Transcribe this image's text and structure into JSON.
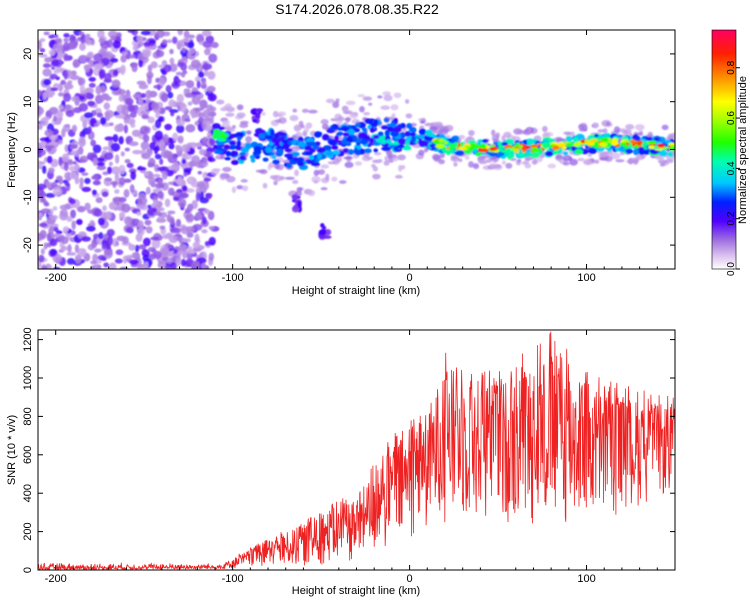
{
  "title": "S174.2026.078.08.35.R22",
  "chart_data": [
    {
      "type": "heatmap",
      "name": "spectrogram",
      "xlabel": "Height of straight line (km)",
      "ylabel": "Frequency (Hz)",
      "xlim": [
        -210,
        150
      ],
      "ylim": [
        -25,
        25
      ],
      "xticks": [
        -200,
        -100,
        0,
        100
      ],
      "yticks": [
        -20,
        -10,
        0,
        10,
        20
      ],
      "colorbar": {
        "label": "Normalized spectral amplitude",
        "range": [
          0,
          0.95
        ],
        "ticks": [
          0.0,
          0.2,
          0.4,
          0.6,
          0.8
        ]
      },
      "features": {
        "noise_region_x": [
          -210,
          -110
        ],
        "signal_trace": [
          {
            "x": -110,
            "y": 3
          },
          {
            "x": -100,
            "y": 0
          },
          {
            "x": -80,
            "y": 1
          },
          {
            "x": -60,
            "y": -1
          },
          {
            "x": -40,
            "y": 2
          },
          {
            "x": -20,
            "y": 3
          },
          {
            "x": 0,
            "y": 3
          },
          {
            "x": 20,
            "y": 1
          },
          {
            "x": 50,
            "y": 0
          },
          {
            "x": 80,
            "y": 0.5
          },
          {
            "x": 110,
            "y": 1.5
          },
          {
            "x": 130,
            "y": 1
          },
          {
            "x": 150,
            "y": 0.5
          }
        ],
        "side_blobs": [
          {
            "x": -63,
            "y": -11
          },
          {
            "x": -48,
            "y": -17
          },
          {
            "x": -86,
            "y": 7
          }
        ]
      }
    },
    {
      "type": "line",
      "name": "snr",
      "xlabel": "Height of straight line (km)",
      "ylabel": "SNR (10 * v/v)",
      "xlim": [
        -210,
        150
      ],
      "ylim": [
        0,
        1250
      ],
      "xticks": [
        -200,
        -100,
        0,
        100
      ],
      "yticks": [
        0,
        200,
        400,
        600,
        800,
        1000,
        1200
      ],
      "color": "#ee2222",
      "series_envelope": [
        {
          "x": -210,
          "low": 0,
          "high": 40
        },
        {
          "x": -105,
          "low": 5,
          "high": 40
        },
        {
          "x": -90,
          "low": 10,
          "high": 120
        },
        {
          "x": -60,
          "low": 20,
          "high": 260
        },
        {
          "x": -30,
          "low": 40,
          "high": 420
        },
        {
          "x": -10,
          "low": 100,
          "high": 700
        },
        {
          "x": 10,
          "low": 200,
          "high": 900
        },
        {
          "x": 20,
          "low": 250,
          "high": 1150
        },
        {
          "x": 50,
          "low": 250,
          "high": 1050
        },
        {
          "x": 80,
          "low": 200,
          "high": 1250
        },
        {
          "x": 110,
          "low": 250,
          "high": 1000
        },
        {
          "x": 150,
          "low": 400,
          "high": 900
        }
      ]
    }
  ]
}
